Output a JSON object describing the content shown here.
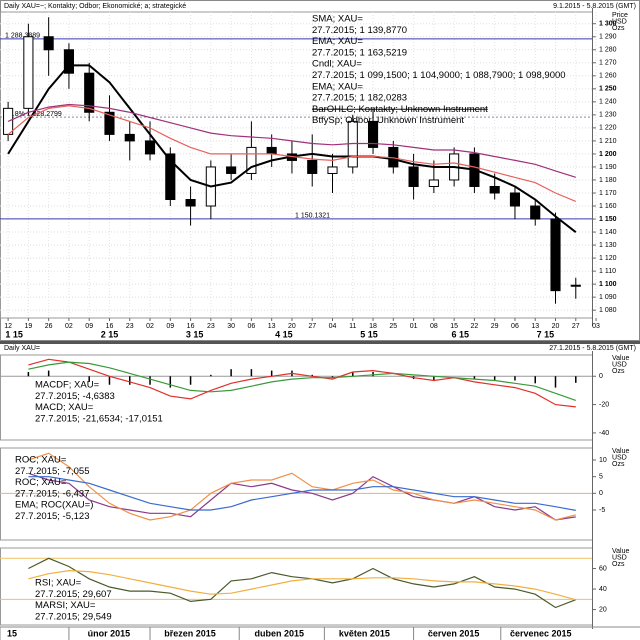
{
  "chart_data": [
    {
      "type": "candlestick",
      "title": "Daily XAU=~; Kontakty; Odbor; Ekonomické; a; strategické",
      "subtitle": "9.1.2015 - 5.8.2015 (GMT)",
      "y_label": [
        "Price",
        "USD",
        "Ozs"
      ],
      "grid": true,
      "x": [
        0,
        1,
        2,
        3,
        4,
        5,
        6,
        7,
        8,
        9,
        10,
        11,
        12,
        13,
        14,
        15,
        16,
        17,
        18,
        19,
        20,
        21,
        22,
        23,
        24,
        25,
        26,
        27,
        28
      ],
      "open": [
        1215,
        1235,
        1290,
        1280,
        1262,
        1232,
        1215,
        1210,
        1200,
        1165,
        1160,
        1190,
        1185,
        1205,
        1200,
        1195,
        1185,
        1190,
        1225,
        1205,
        1190,
        1175,
        1180,
        1200,
        1175,
        1170,
        1160,
        1150,
        1099.15
      ],
      "high": [
        1240,
        1300,
        1305,
        1285,
        1270,
        1245,
        1225,
        1225,
        1205,
        1175,
        1195,
        1200,
        1225,
        1215,
        1210,
        1215,
        1200,
        1230,
        1235,
        1210,
        1200,
        1195,
        1205,
        1205,
        1185,
        1175,
        1165,
        1155,
        1104.9
      ],
      "low": [
        1210,
        1230,
        1260,
        1250,
        1225,
        1210,
        1195,
        1195,
        1160,
        1145,
        1150,
        1180,
        1180,
        1190,
        1185,
        1175,
        1170,
        1185,
        1200,
        1185,
        1165,
        1170,
        1175,
        1170,
        1165,
        1150,
        1145,
        1085,
        1088.79
      ],
      "close": [
        1235,
        1290,
        1280,
        1262,
        1232,
        1215,
        1210,
        1200,
        1165,
        1160,
        1190,
        1185,
        1205,
        1200,
        1195,
        1185,
        1190,
        1225,
        1205,
        1190,
        1175,
        1180,
        1200,
        1175,
        1170,
        1160,
        1150,
        1095,
        1098.9
      ],
      "candle_color": "#000000",
      "series": [
        {
          "name": "SMA",
          "color": "#000000",
          "values": [
            1200,
            1225,
            1250,
            1268,
            1268,
            1255,
            1235,
            1215,
            1195,
            1180,
            1175,
            1178,
            1190,
            1195,
            1198,
            1200,
            1198,
            1198,
            1198,
            1196,
            1192,
            1190,
            1190,
            1188,
            1182,
            1175,
            1165,
            1152,
            1139.877
          ]
        },
        {
          "name": "EMA",
          "color": "#e8605a",
          "values": [
            1215,
            1228,
            1235,
            1237,
            1235,
            1230,
            1225,
            1220,
            1212,
            1205,
            1200,
            1200,
            1200,
            1200,
            1198,
            1196,
            1195,
            1198,
            1198,
            1197,
            1194,
            1192,
            1193,
            1190,
            1186,
            1182,
            1178,
            1170,
            1163.5219
          ]
        },
        {
          "name": "EMA",
          "color": "#a0307a",
          "values": [
            1225,
            1232,
            1236,
            1238,
            1237,
            1235,
            1232,
            1228,
            1224,
            1220,
            1216,
            1214,
            1213,
            1212,
            1210,
            1208,
            1207,
            1208,
            1208,
            1207,
            1205,
            1203,
            1203,
            1201,
            1198,
            1195,
            1192,
            1187,
            1182.0283
          ]
        }
      ],
      "hlines": [
        {
          "value": 1288.3889,
          "label": "1 288.3889",
          "color": "#3a3ab0"
        },
        {
          "value": 1228.2799,
          "label": "61.8% 1 228.2799",
          "color": "#8a8aa8"
        },
        {
          "value": 1150.1321,
          "label": "1 150.1321",
          "color": "#3a3ab0"
        }
      ],
      "legend": [
        {
          "text": "SMA; XAU=",
          "color": "#000000"
        },
        {
          "text": "27.7.2015; 1 139,8770",
          "color": "#000000"
        },
        {
          "text": "EMA; XAU=",
          "color": "#e0302a"
        },
        {
          "text": "27.7.2015; 1 163,5219",
          "color": "#e0302a"
        },
        {
          "text": "Cndl; XAU=",
          "color": "#000000"
        },
        {
          "text": "27.7.2015; 1 099,1500; 1 104,9000; 1 088,7900; 1 098,9000",
          "color": "#000000"
        },
        {
          "text": "EMA; XAU=",
          "color": "#a0307a"
        },
        {
          "text": "27.7.2015; 1 182,0283",
          "color": "#a0307a"
        },
        {
          "text": "BarOHLC; Kontakty; Unknown Instrument",
          "color": "#e08a20",
          "strikethrough": true
        },
        {
          "text": "BtfySp; Odbor; Unknown Instrument",
          "color": "#3a8a3a"
        }
      ],
      "xlim": [
        -0.4,
        28.8
      ],
      "ylim": [
        1074,
        1309
      ],
      "xticks": [
        {
          "value": 0,
          "label": "12"
        },
        {
          "value": 1,
          "label": "19"
        },
        {
          "value": 2,
          "label": "26"
        },
        {
          "value": 3,
          "label": "02"
        },
        {
          "value": 4,
          "label": "09"
        },
        {
          "value": 5,
          "label": "16"
        },
        {
          "value": 6,
          "label": "23"
        },
        {
          "value": 7,
          "label": "02"
        },
        {
          "value": 8,
          "label": "09"
        },
        {
          "value": 9,
          "label": "16"
        },
        {
          "value": 10,
          "label": "23"
        },
        {
          "value": 11,
          "label": "30"
        },
        {
          "value": 12,
          "label": "06"
        },
        {
          "value": 13,
          "label": "13"
        },
        {
          "value": 14,
          "label": "20"
        },
        {
          "value": 15,
          "label": "27"
        },
        {
          "value": 16,
          "label": "04"
        },
        {
          "value": 17,
          "label": "11"
        },
        {
          "value": 18,
          "label": "18"
        },
        {
          "value": 19,
          "label": "25"
        },
        {
          "value": 20,
          "label": "01"
        },
        {
          "value": 21,
          "label": "08"
        },
        {
          "value": 22,
          "label": "15"
        },
        {
          "value": 23,
          "label": "22"
        },
        {
          "value": 24,
          "label": "29"
        },
        {
          "value": 25,
          "label": "06"
        },
        {
          "value": 26,
          "label": "13"
        },
        {
          "value": 27,
          "label": "20"
        },
        {
          "value": 28,
          "label": "27"
        },
        {
          "value": 29,
          "label": "03"
        }
      ],
      "month_ticks": [
        {
          "value": 0.3,
          "label": "1 15"
        },
        {
          "value": 5,
          "label": "2 15"
        },
        {
          "value": 9.2,
          "label": "3 15"
        },
        {
          "value": 13.6,
          "label": "4 15"
        },
        {
          "value": 17.8,
          "label": "5 15"
        },
        {
          "value": 22.3,
          "label": "6 15"
        },
        {
          "value": 26.5,
          "label": "7 15"
        }
      ],
      "yticks": [
        {
          "value": 1080,
          "label": "1 080"
        },
        {
          "value": 1090,
          "label": "1 090"
        },
        {
          "value": 1100,
          "label": "1 100"
        },
        {
          "value": 1110,
          "label": "1 110"
        },
        {
          "value": 1120,
          "label": "1 120"
        },
        {
          "value": 1130,
          "label": "1 130"
        },
        {
          "value": 1140,
          "label": "1 140"
        },
        {
          "value": 1150,
          "label": "1 150"
        },
        {
          "value": 1160,
          "label": "1 160"
        },
        {
          "value": 1170,
          "label": "1 170"
        },
        {
          "value": 1180,
          "label": "1 180"
        },
        {
          "value": 1190,
          "label": "1 190"
        },
        {
          "value": 1200,
          "label": "1 200"
        },
        {
          "value": 1210,
          "label": "1 210"
        },
        {
          "value": 1220,
          "label": "1 220"
        },
        {
          "value": 1230,
          "label": "1 230"
        },
        {
          "value": 1240,
          "label": "1 240"
        },
        {
          "value": 1250,
          "label": "1 250"
        },
        {
          "value": 1260,
          "label": "1 260"
        },
        {
          "value": 1270,
          "label": "1 270"
        },
        {
          "value": 1280,
          "label": "1 280"
        },
        {
          "value": 1290,
          "label": "1 290"
        },
        {
          "value": 1300,
          "label": "1 300"
        }
      ]
    },
    {
      "type": "combo",
      "title": "Daily XAU=",
      "subtitle": "27.1.2015 - 5.8.2015 (GMT)",
      "y_label": [
        "Value",
        "USD",
        "Ozs"
      ],
      "x": [
        1,
        2,
        3,
        4,
        5,
        6,
        7,
        8,
        9,
        10,
        11,
        12,
        13,
        14,
        15,
        16,
        17,
        18,
        19,
        20,
        21,
        22,
        23,
        24,
        25,
        26,
        27,
        28
      ],
      "series": [
        {
          "name": "MACDF",
          "type": "bar",
          "color": "#000000",
          "values": [
            3,
            4,
            0,
            -4,
            -6,
            -6,
            -6,
            -8,
            -6,
            1,
            5,
            5,
            4,
            4,
            1,
            -1,
            3,
            3,
            0,
            -2,
            -3,
            0,
            -2,
            -3,
            -3,
            -5,
            -8,
            -4.6383
          ]
        },
        {
          "name": "MACD",
          "type": "line",
          "color": "#e0302a",
          "values": [
            8,
            12,
            10,
            5,
            0,
            -4,
            -8,
            -14,
            -16,
            -10,
            -5,
            -2,
            0,
            2,
            0,
            -2,
            3,
            4,
            2,
            -1,
            -3,
            -1,
            -4,
            -6,
            -8,
            -12,
            -20,
            -21.6534
          ]
        },
        {
          "name": "Signal",
          "type": "line",
          "color": "#3a9a3a",
          "values": [
            5,
            8,
            10,
            9,
            6,
            2,
            -2,
            -6,
            -10,
            -11,
            -10,
            -7,
            -4,
            -2,
            -1,
            -1,
            0,
            1,
            2,
            1,
            0,
            -1,
            -2,
            -3,
            -5,
            -7,
            -12,
            -17.0151
          ]
        }
      ],
      "legend": [
        {
          "text": "MACDF; XAU=",
          "color": "#000000"
        },
        {
          "text": "27.7.2015; -4,6383",
          "color": "#000000"
        },
        {
          "text": "MACD; XAU=",
          "color": "#e0302a"
        },
        {
          "text": "27.7.2015; -21,6534; -17,0151",
          "color": "#e0302a"
        }
      ],
      "hlines": [
        {
          "value": 0,
          "color": "#999999"
        }
      ],
      "xlim": [
        -0.4,
        28.8
      ],
      "ylim": [
        -45,
        15
      ],
      "yticks": [
        0,
        -20,
        -40
      ]
    },
    {
      "type": "line",
      "y_label": [
        "Value",
        "USD",
        "Ozs"
      ],
      "x": [
        1,
        2,
        3,
        4,
        5,
        6,
        7,
        8,
        9,
        10,
        11,
        12,
        13,
        14,
        15,
        16,
        17,
        18,
        19,
        20,
        21,
        22,
        23,
        24,
        25,
        26,
        27,
        28
      ],
      "series": [
        {
          "name": "ROC",
          "color": "#8a3a8a",
          "values": [
            6,
            4,
            3,
            -2,
            -4,
            -5,
            -6,
            -6,
            -7,
            -2,
            3,
            2,
            3,
            1,
            0,
            -2,
            0,
            5,
            2,
            -1,
            -2,
            -3,
            -1,
            -4,
            -5,
            -4,
            -8,
            -7.055
          ]
        },
        {
          "name": "ROC",
          "color": "#f0904a",
          "values": [
            10,
            12,
            8,
            2,
            -3,
            -6,
            -8,
            -7,
            -5,
            0,
            3,
            4,
            4,
            6,
            2,
            1,
            3,
            4,
            1,
            0,
            -2,
            -3,
            -2,
            -3,
            -4,
            -5,
            -8,
            -6.437
          ]
        },
        {
          "name": "EMA",
          "color": "#3a6ad0",
          "values": [
            5,
            5,
            4,
            3,
            1,
            -1,
            -3,
            -4,
            -5,
            -5,
            -4,
            -2,
            -1,
            0,
            1,
            1,
            1,
            2,
            2,
            1,
            0,
            -1,
            -1,
            -2,
            -3,
            -3,
            -4,
            -5.123
          ]
        }
      ],
      "legend": [
        {
          "text": "ROC; XAU=",
          "color": "#8a3a8a"
        },
        {
          "text": "27.7.2015; -7,055",
          "color": "#8a3a8a"
        },
        {
          "text": "ROC; XAU=",
          "color": "#f0904a"
        },
        {
          "text": "27.7.2015; -6,437",
          "color": "#f0904a"
        },
        {
          "text": "EMA; ROC(XAU=)",
          "color": "#3a6ad0"
        },
        {
          "text": "27.7.2015; -5,123",
          "color": "#3a6ad0"
        }
      ],
      "hlines": [
        {
          "value": 0,
          "color": "#f0b060"
        }
      ],
      "xlim": [
        -0.4,
        28.8
      ],
      "ylim": [
        -14,
        13.6
      ],
      "yticks": [
        10,
        5,
        0,
        -5
      ]
    },
    {
      "type": "line",
      "y_label": [
        "Value",
        "USD",
        "Ozs"
      ],
      "x": [
        1,
        2,
        3,
        4,
        5,
        6,
        7,
        8,
        9,
        10,
        11,
        12,
        13,
        14,
        15,
        16,
        17,
        18,
        19,
        20,
        21,
        22,
        23,
        24,
        25,
        26,
        27,
        28
      ],
      "series": [
        {
          "name": "RSI",
          "color": "#4a5a2a",
          "values": [
            60,
            70,
            62,
            50,
            42,
            38,
            38,
            36,
            28,
            30,
            48,
            50,
            56,
            52,
            50,
            46,
            50,
            60,
            50,
            45,
            42,
            45,
            52,
            42,
            40,
            35,
            22,
            29.607
          ]
        },
        {
          "name": "MARSI",
          "color": "#f0b040",
          "values": [
            50,
            55,
            58,
            57,
            54,
            50,
            46,
            42,
            38,
            35,
            36,
            40,
            44,
            48,
            50,
            50,
            50,
            51,
            51,
            50,
            48,
            47,
            47,
            45,
            43,
            40,
            35,
            29.549
          ]
        }
      ],
      "legend": [
        {
          "text": "RSI; XAU=",
          "color": "#000000"
        },
        {
          "text": "27.7.2015; 29,607",
          "color": "#000000"
        },
        {
          "text": "MARSI; XAU=",
          "color": "#f0a030"
        },
        {
          "text": "27.7.2015; 29,549",
          "color": "#f0a030"
        }
      ],
      "hlines": [
        {
          "value": 70,
          "color": "#f0c060"
        },
        {
          "value": 30,
          "color": "#f0c060"
        }
      ],
      "xlim": [
        -0.4,
        28.8
      ],
      "ylim": [
        5,
        80
      ],
      "yticks": [
        60,
        40,
        20
      ],
      "xticks": [
        {
          "value": -0.4,
          "label": "15"
        },
        {
          "value": 3,
          "label": "únor 2015"
        },
        {
          "value": 7,
          "label": "březen 2015"
        },
        {
          "value": 11.4,
          "label": "duben 2015"
        },
        {
          "value": 15.6,
          "label": "květen 2015"
        },
        {
          "value": 20,
          "label": "červen 2015"
        },
        {
          "value": 24.3,
          "label": "červenec 2015"
        }
      ]
    }
  ]
}
